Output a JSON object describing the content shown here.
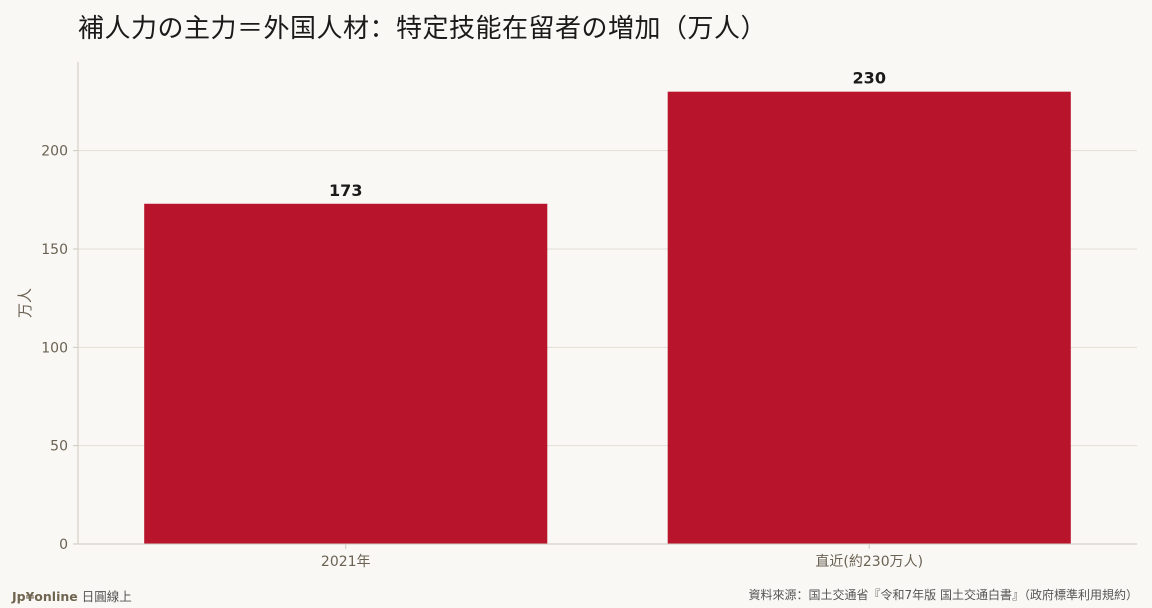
{
  "title": "補人力の主力＝外国人材：特定技能在留者の増加（万人）",
  "footer": {
    "brand_logo": "Jp¥online",
    "brand_tagline": "日圓線上",
    "source": "資料來源：国土交通省『令和7年版 国土交通白書』（政府標準利用規約）"
  },
  "colors": {
    "bar": "#b8152c",
    "grid": "#e2ddd5",
    "axis": "#cfc9be",
    "tick_text": "#6b6254",
    "label_text": "#1a1a1a",
    "background": "#faf8f4"
  },
  "chart_data": {
    "type": "bar",
    "title": "補人力の主力＝外国人材：特定技能在留者の増加（万人）",
    "categories": [
      "2021年",
      "直近(約230万人)"
    ],
    "values": [
      173,
      230
    ],
    "data_labels": [
      "173",
      "230"
    ],
    "xlabel": "",
    "ylabel": "万人",
    "ylim": [
      0,
      240
    ],
    "yticks": [
      0,
      50,
      100,
      150,
      200
    ],
    "grid": true,
    "legend": "none"
  }
}
